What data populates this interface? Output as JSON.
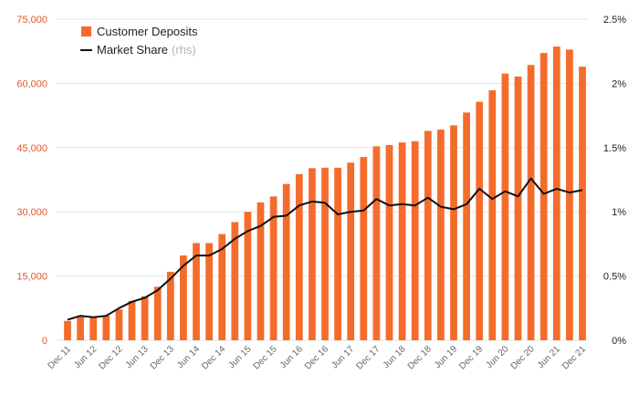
{
  "chart_data": {
    "type": "bar+line",
    "title": "",
    "legend": {
      "position": "top-left",
      "bar_label": "Customer Deposits",
      "line_label": "Market Share",
      "line_label_suffix": "(rhs)"
    },
    "colors": {
      "bar": "#f46c2c",
      "line": "#111111",
      "grid": "#e6e6e6",
      "left_axis_text": "#e8542a",
      "right_axis_text": "#222222",
      "x_axis_text": "#666666"
    },
    "y_left": {
      "min": 0,
      "max": 75000,
      "ticks": [
        "0",
        "15,000",
        "30,000",
        "45,000",
        "60,000",
        "75,000"
      ],
      "tick_values": [
        0,
        15000,
        30000,
        45000,
        60000,
        75000
      ]
    },
    "y_right": {
      "min": 0,
      "max": 2.5,
      "ticks": [
        "0%",
        "0.5%",
        "1%",
        "1.5%",
        "2%",
        "2.5%"
      ],
      "tick_values": [
        0,
        0.5,
        1,
        1.5,
        2,
        2.5
      ]
    },
    "x_tick_labels": [
      "Dec 11",
      "Jun 12",
      "Dec 12",
      "Jun 13",
      "Dec 13",
      "Jun 14",
      "Dec 14",
      "Jun 15",
      "Dec 15",
      "Jun 16",
      "Dec 16",
      "Jun 17",
      "Dec 17",
      "Jun 18",
      "Dec 18",
      "Jun 19",
      "Dec 19",
      "Jun 20",
      "Dec 20",
      "Jun 21",
      "Dec 21"
    ],
    "series": [
      {
        "name": "Customer Deposits",
        "axis": "left",
        "kind": "bar",
        "values": [
          4500,
          5500,
          5300,
          5800,
          7200,
          9200,
          10300,
          12500,
          16000,
          19800,
          22700,
          22700,
          24800,
          27600,
          30000,
          32200,
          33600,
          36500,
          38800,
          40200,
          40300,
          40300,
          41500,
          42800,
          45300,
          45600,
          46200,
          46500,
          48900,
          49200,
          50200,
          53200,
          55700,
          58400,
          62300,
          61600,
          64300,
          67100,
          68600,
          67900,
          63900
        ]
      },
      {
        "name": "Market Share",
        "axis": "right",
        "kind": "line",
        "values": [
          0.16,
          0.19,
          0.18,
          0.19,
          0.25,
          0.3,
          0.33,
          0.39,
          0.48,
          0.58,
          0.66,
          0.66,
          0.71,
          0.79,
          0.85,
          0.89,
          0.96,
          0.97,
          1.05,
          1.08,
          1.07,
          0.98,
          1.0,
          1.01,
          1.1,
          1.05,
          1.06,
          1.05,
          1.11,
          1.04,
          1.02,
          1.06,
          1.18,
          1.1,
          1.16,
          1.12,
          1.26,
          1.14,
          1.18,
          1.15,
          1.17
        ]
      }
    ]
  }
}
